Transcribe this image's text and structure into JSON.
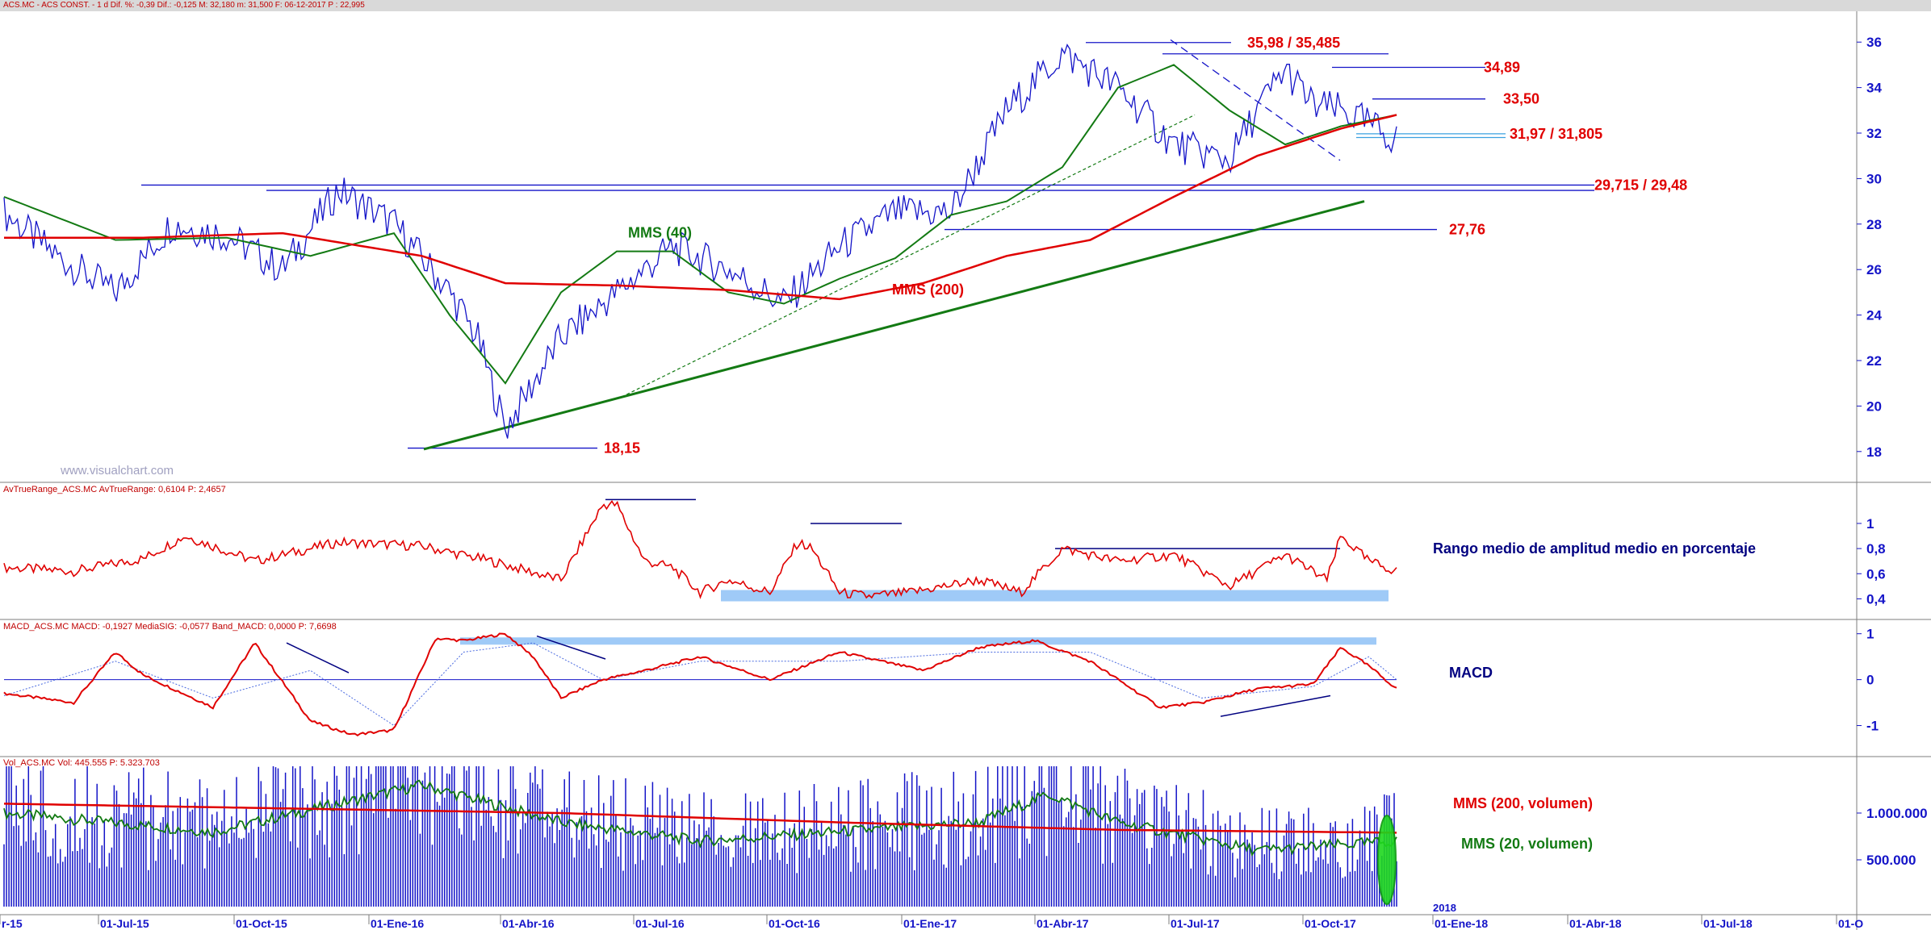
{
  "header": {
    "status_line": "ACS.MC - ACS CONST. -  1 d  Dif. %: -0,39  Dif.: -0,125  M: 32,180  m: 31,500  F: 06-12-2017  P : 22,995"
  },
  "panels": {
    "atr_title": "AvTrueRange_ACS.MC  AvTrueRange: 0,6104  P: 2,4657",
    "macd_title": "MACD_ACS.MC  MACD: -0,1927  MediaSIG: -0,0577  Band_MACD: 0,0000  P: 7,6698",
    "vol_title": "Vol_ACS.MC  Vol: 445.555  P: 5.323.703"
  },
  "watermark": "www.visualchart.com",
  "chart_data": [
    {
      "type": "line",
      "title": "ACS.MC - ACS CONST. - 1 d (price)",
      "ylim": [
        17,
        37
      ],
      "yticks": [
        "18",
        "20",
        "22",
        "24",
        "26",
        "28",
        "30",
        "32",
        "34",
        "36"
      ],
      "x_ticks": [
        "r-15",
        "01-Jul-15",
        "01-Oct-15",
        "01-Ene-16",
        "01-Abr-16",
        "01-Jul-16",
        "01-Oct-16",
        "01-Ene-17",
        "01-Abr-17",
        "01-Jul-17",
        "01-Oct-17",
        "01-Ene-18",
        "01-Abr-18",
        "01-Jul-18",
        "01-O"
      ],
      "year_label": "2018",
      "series": [
        {
          "name": "price",
          "color": "#1414c8",
          "x": [
            0,
            0.04,
            0.08,
            0.12,
            0.16,
            0.2,
            0.24,
            0.28,
            0.32,
            0.34,
            0.36,
            0.4,
            0.44,
            0.48,
            0.52,
            0.56,
            0.6,
            0.64,
            0.68,
            0.72,
            0.76,
            0.8,
            0.84,
            0.88,
            0.9,
            0.92,
            0.94,
            0.96,
            0.98,
            1.0
          ],
          "values": [
            28.5,
            26.5,
            25,
            28,
            27.5,
            26,
            29.5,
            28,
            25,
            23,
            19,
            23,
            25,
            27,
            26,
            24.5,
            27,
            28.5,
            28.5,
            33,
            35.5,
            34,
            31.5,
            30.8,
            33,
            34.8,
            33.2,
            33,
            32.4,
            31.7
          ]
        },
        {
          "name": "MMS (40)",
          "color": "#137a13",
          "x": [
            0,
            0.08,
            0.16,
            0.22,
            0.28,
            0.32,
            0.36,
            0.4,
            0.44,
            0.48,
            0.52,
            0.56,
            0.6,
            0.64,
            0.68,
            0.72,
            0.76,
            0.8,
            0.84,
            0.88,
            0.92,
            0.96,
            1.0
          ],
          "values": [
            29.2,
            27.3,
            27.4,
            26.6,
            27.6,
            24,
            21,
            25,
            26.8,
            26.8,
            25,
            24.5,
            25.6,
            26.5,
            28.4,
            29,
            30.5,
            34,
            35,
            33,
            31.5,
            32.3,
            32.8
          ]
        },
        {
          "name": "MMS (200)",
          "color": "#e00000",
          "x": [
            0,
            0.1,
            0.2,
            0.3,
            0.36,
            0.44,
            0.52,
            0.6,
            0.66,
            0.72,
            0.78,
            0.84,
            0.9,
            0.96,
            1.0
          ],
          "values": [
            27.4,
            27.4,
            27.6,
            26.6,
            25.4,
            25.3,
            25.1,
            24.7,
            25.4,
            26.6,
            27.3,
            29.2,
            31,
            32.2,
            32.8
          ]
        }
      ],
      "annotations": [
        {
          "text": "35,98 / 35,485",
          "value": 35.98
        },
        {
          "text": "34,89",
          "value": 34.89
        },
        {
          "text": "33,50",
          "value": 33.5
        },
        {
          "text": "31,97 / 31,805",
          "value": 31.97
        },
        {
          "text": "29,715 / 29,48",
          "value": 29.715
        },
        {
          "text": "27,76",
          "value": 27.76
        },
        {
          "text": "18,15",
          "value": 18.15
        }
      ],
      "labels": {
        "mms40": "MMS (40)",
        "mms200": "MMS (200)"
      }
    },
    {
      "type": "line",
      "title": "AvTrueRange",
      "ylim": [
        0.3,
        1.25
      ],
      "yticks": [
        "0,4",
        "0,6",
        "0,8",
        "1"
      ],
      "series": [
        {
          "name": "AvTrueRange",
          "color": "#e00000",
          "x": [
            0,
            0.05,
            0.1,
            0.13,
            0.18,
            0.24,
            0.3,
            0.35,
            0.4,
            0.43,
            0.44,
            0.46,
            0.48,
            0.5,
            0.52,
            0.55,
            0.57,
            0.58,
            0.6,
            0.62,
            0.65,
            0.7,
            0.73,
            0.76,
            0.8,
            0.84,
            0.88,
            0.92,
            0.95,
            0.96,
            0.98,
            1.0
          ],
          "values": [
            0.65,
            0.62,
            0.72,
            0.9,
            0.7,
            0.85,
            0.82,
            0.7,
            0.55,
            1.15,
            1.15,
            0.7,
            0.65,
            0.45,
            0.55,
            0.45,
            0.85,
            0.8,
            0.45,
            0.42,
            0.45,
            0.55,
            0.45,
            0.8,
            0.7,
            0.75,
            0.5,
            0.75,
            0.55,
            0.9,
            0.7,
            0.62
          ]
        }
      ],
      "note": "Rango medio de amplitud medio en porcentaje"
    },
    {
      "type": "line",
      "title": "MACD",
      "ylim": [
        -1.5,
        1.1
      ],
      "yticks": [
        "-1",
        "0",
        "1"
      ],
      "series": [
        {
          "name": "MACD",
          "color": "#e00000",
          "x": [
            0,
            0.05,
            0.08,
            0.1,
            0.15,
            0.18,
            0.22,
            0.25,
            0.28,
            0.31,
            0.33,
            0.36,
            0.38,
            0.4,
            0.43,
            0.46,
            0.5,
            0.55,
            0.6,
            0.66,
            0.7,
            0.74,
            0.78,
            0.83,
            0.86,
            0.9,
            0.94,
            0.96,
            0.98,
            1.0
          ],
          "values": [
            -0.3,
            -0.5,
            0.6,
            0.1,
            -0.6,
            0.8,
            -0.9,
            -1.2,
            -1.1,
            0.9,
            0.85,
            1.0,
            0.5,
            -0.4,
            0.0,
            0.2,
            0.5,
            0.0,
            0.6,
            0.2,
            0.7,
            0.85,
            0.4,
            -0.6,
            -0.5,
            -0.2,
            -0.1,
            0.7,
            0.3,
            -0.2
          ]
        },
        {
          "name": "MediaSIG",
          "color": "#4a6ae0",
          "x": [
            0,
            0.08,
            0.15,
            0.22,
            0.28,
            0.33,
            0.38,
            0.43,
            0.5,
            0.6,
            0.7,
            0.78,
            0.86,
            0.94,
            0.98,
            1.0
          ],
          "values": [
            -0.35,
            0.4,
            -0.4,
            0.2,
            -1.0,
            0.6,
            0.8,
            0.0,
            0.4,
            0.4,
            0.6,
            0.6,
            -0.4,
            -0.15,
            0.5,
            0.0
          ]
        }
      ],
      "note": "MACD"
    },
    {
      "type": "bar",
      "title": "Volumen",
      "ylim": [
        0,
        1500000
      ],
      "yticks": [
        "500.000",
        "1.000.000"
      ],
      "series": [
        {
          "name": "MMS (200, volumen)",
          "color": "#e00000",
          "x": [
            0,
            0.2,
            0.4,
            0.6,
            0.8,
            1.0
          ],
          "values": [
            1100000,
            1050000,
            1000000,
            900000,
            820000,
            790000
          ]
        },
        {
          "name": "MMS (20, volumen)",
          "color": "#137a13",
          "x": [
            0,
            0.15,
            0.3,
            0.4,
            0.5,
            0.6,
            0.7,
            0.75,
            0.8,
            0.9,
            1.0
          ],
          "values": [
            1000000,
            800000,
            1300000,
            900000,
            700000,
            800000,
            900000,
            1200000,
            900000,
            600000,
            700000
          ]
        }
      ],
      "labels": {
        "mms200": "MMS (200, volumen)",
        "mms20": "MMS (20, volumen)"
      }
    }
  ],
  "colors": {
    "axis": "#1414c8",
    "price": "#1414c8",
    "mms40": "#137a13",
    "mms200": "#e00000",
    "annot": "#e00000",
    "band": "#9fcaf7",
    "highlight": "#1fd81f"
  }
}
